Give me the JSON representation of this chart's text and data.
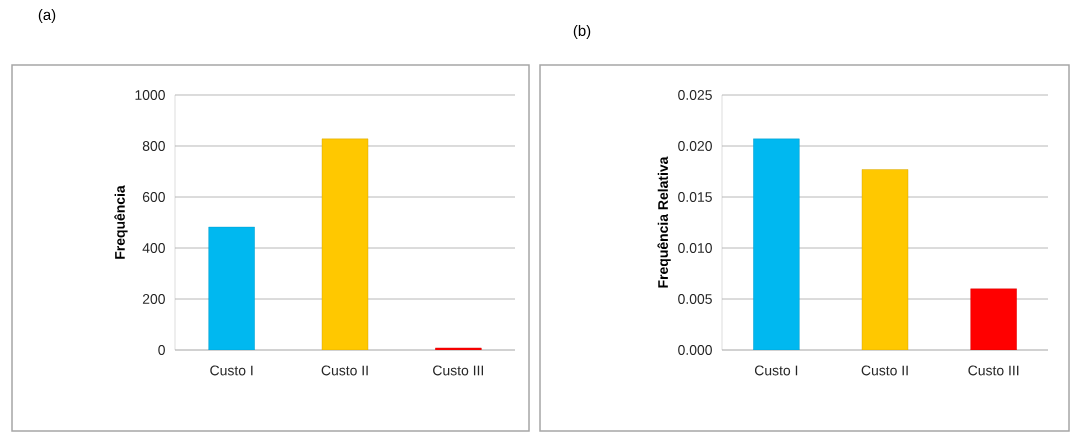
{
  "chart_data": [
    {
      "type": "bar",
      "title": "(a)",
      "ylabel": "Frequência",
      "categories": [
        "Custo I",
        "Custo II",
        "Custo III"
      ],
      "values": [
        482,
        828,
        8
      ],
      "colors": [
        "#00b8f0",
        "#ffc800",
        "#ff0000"
      ],
      "ylim": [
        0,
        1000
      ],
      "yticks": [
        0,
        200,
        400,
        600,
        800,
        1000
      ],
      "grid": "y"
    },
    {
      "type": "bar",
      "title": "(b)",
      "ylabel": "Frequência Relativa",
      "categories": [
        "Custo I",
        "Custo II",
        "Custo III"
      ],
      "values": [
        0.0207,
        0.0177,
        0.006
      ],
      "colors": [
        "#00b8f0",
        "#ffc800",
        "#ff0000"
      ],
      "ylim": [
        0,
        0.025
      ],
      "yticks": [
        {
          "value": 0,
          "label": "0.000"
        },
        {
          "value": 0.005,
          "label": "0.005"
        },
        {
          "value": 0.01,
          "label": "0.010"
        },
        {
          "value": 0.015,
          "label": "0.015"
        },
        {
          "value": 0.02,
          "label": "0.020"
        },
        {
          "value": 0.025,
          "label": "0.025"
        }
      ],
      "grid": "y"
    }
  ]
}
